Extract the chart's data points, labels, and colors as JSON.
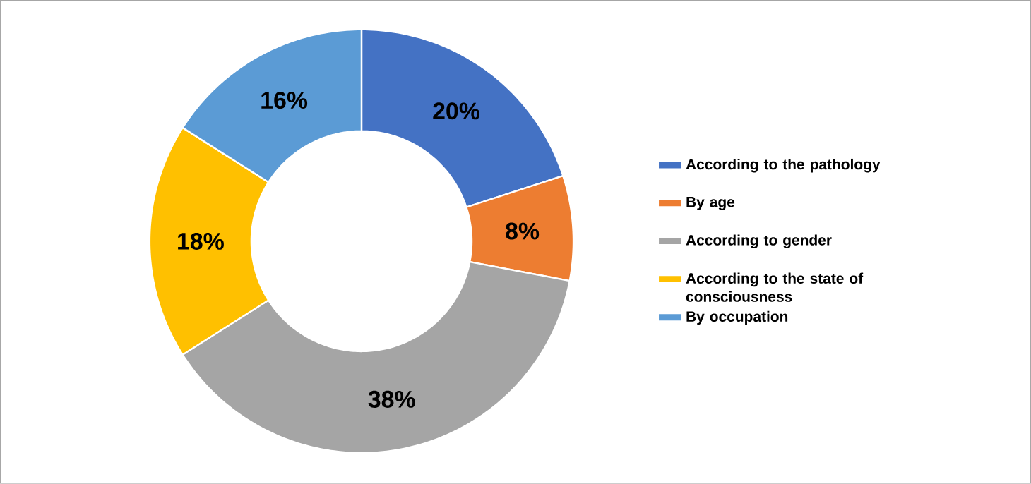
{
  "chart_data": {
    "type": "donut",
    "categories": [
      "According to the pathology",
      "By age",
      "According to gender",
      "According to the state of consciousness",
      "By occupation"
    ],
    "values": [
      20,
      8,
      38,
      18,
      16
    ],
    "value_labels": [
      "20%",
      "8%",
      "38%",
      "18%",
      "16%"
    ],
    "colors": [
      "#4472c4",
      "#ed7d31",
      "#a5a5a5",
      "#ffc000",
      "#5b9bd5"
    ],
    "legend": "right"
  }
}
